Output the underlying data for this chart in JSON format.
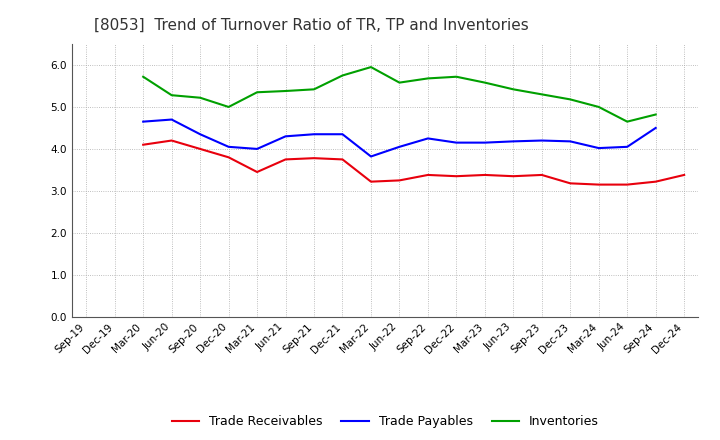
{
  "title": "[8053]  Trend of Turnover Ratio of TR, TP and Inventories",
  "x_labels": [
    "Sep-19",
    "Dec-19",
    "Mar-20",
    "Jun-20",
    "Sep-20",
    "Dec-20",
    "Mar-21",
    "Jun-21",
    "Sep-21",
    "Dec-21",
    "Mar-22",
    "Jun-22",
    "Sep-22",
    "Dec-22",
    "Mar-23",
    "Jun-23",
    "Sep-23",
    "Dec-23",
    "Mar-24",
    "Jun-24",
    "Sep-24",
    "Dec-24"
  ],
  "trade_receivables": [
    null,
    null,
    4.1,
    4.2,
    4.0,
    3.8,
    3.45,
    3.75,
    3.78,
    3.75,
    3.22,
    3.25,
    3.38,
    3.35,
    3.38,
    3.35,
    3.38,
    3.18,
    3.15,
    3.15,
    3.22,
    3.38
  ],
  "trade_payables": [
    null,
    null,
    4.65,
    4.7,
    4.35,
    4.05,
    4.0,
    4.3,
    4.35,
    4.35,
    3.82,
    4.05,
    4.25,
    4.15,
    4.15,
    4.18,
    4.2,
    4.18,
    4.02,
    4.05,
    4.5,
    null
  ],
  "inventories": [
    null,
    null,
    5.72,
    5.28,
    5.22,
    5.0,
    5.35,
    5.38,
    5.42,
    5.75,
    5.95,
    5.58,
    5.68,
    5.72,
    5.58,
    5.42,
    5.3,
    5.18,
    5.0,
    4.65,
    4.82,
    null
  ],
  "ylim": [
    0.0,
    6.5
  ],
  "yticks": [
    0.0,
    1.0,
    2.0,
    3.0,
    4.0,
    5.0,
    6.0
  ],
  "line_color_tr": "#e8000d",
  "line_color_tp": "#0000ff",
  "line_color_inv": "#00a000",
  "legend_labels": [
    "Trade Receivables",
    "Trade Payables",
    "Inventories"
  ],
  "background_color": "#ffffff",
  "plot_bg_color": "#ffffff",
  "grid_color": "#aaaaaa",
  "title_fontsize": 11,
  "tick_fontsize": 7.5,
  "legend_fontsize": 9
}
